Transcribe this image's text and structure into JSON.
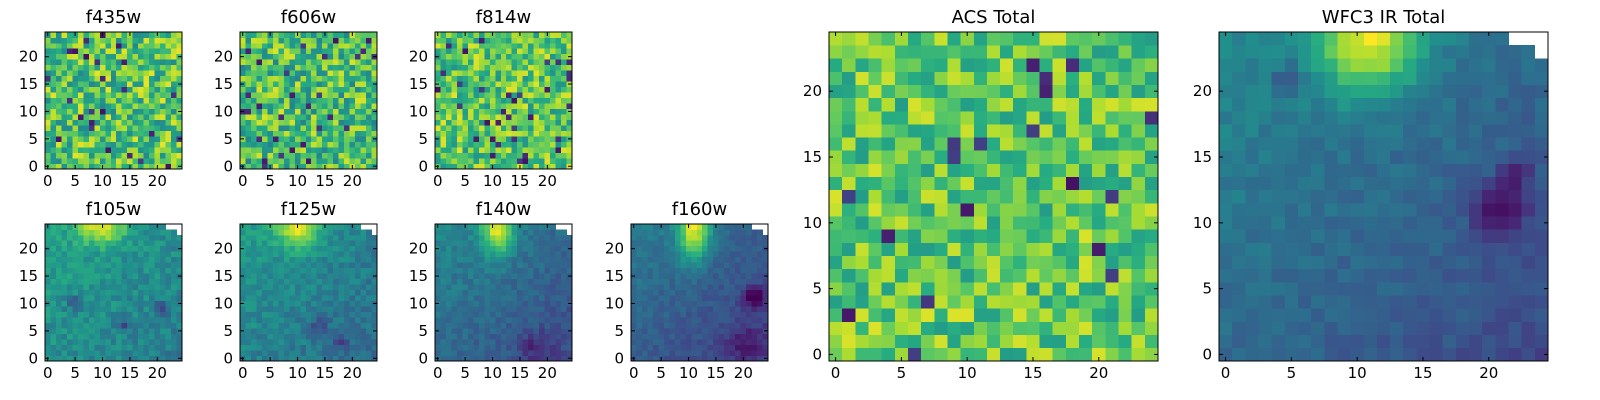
{
  "chart_data": [
    {
      "type": "heatmap",
      "title": "f435w",
      "grid_size": 25,
      "colormap": "viridis",
      "xticks": [
        "0",
        "5",
        "10",
        "15",
        "20"
      ],
      "yticks": [
        "0",
        "5",
        "10",
        "15",
        "20"
      ],
      "xlim": [
        -0.5,
        24.5
      ],
      "ylim": [
        -0.5,
        24.5
      ]
    },
    {
      "type": "heatmap",
      "title": "f606w",
      "grid_size": 25,
      "colormap": "viridis",
      "xticks": [
        "0",
        "5",
        "10",
        "15",
        "20"
      ],
      "yticks": [
        "0",
        "5",
        "10",
        "15",
        "20"
      ],
      "xlim": [
        -0.5,
        24.5
      ],
      "ylim": [
        -0.5,
        24.5
      ]
    },
    {
      "type": "heatmap",
      "title": "f814w",
      "grid_size": 25,
      "colormap": "viridis",
      "xticks": [
        "0",
        "5",
        "10",
        "15",
        "20"
      ],
      "yticks": [
        "0",
        "5",
        "10",
        "15",
        "20"
      ],
      "xlim": [
        -0.5,
        24.5
      ],
      "ylim": [
        -0.5,
        24.5
      ]
    },
    {
      "type": "heatmap",
      "title": "f105w",
      "grid_size": 25,
      "colormap": "viridis",
      "xticks": [
        "0",
        "5",
        "10",
        "15",
        "20"
      ],
      "yticks": [
        "0",
        "5",
        "10",
        "15",
        "20"
      ],
      "xlim": [
        -0.5,
        24.5
      ],
      "ylim": [
        -0.5,
        24.5
      ],
      "masked_corner": "top-right"
    },
    {
      "type": "heatmap",
      "title": "f125w",
      "grid_size": 25,
      "colormap": "viridis",
      "xticks": [
        "0",
        "5",
        "10",
        "15",
        "20"
      ],
      "yticks": [
        "0",
        "5",
        "10",
        "15",
        "20"
      ],
      "xlim": [
        -0.5,
        24.5
      ],
      "ylim": [
        -0.5,
        24.5
      ],
      "masked_corner": "top-right"
    },
    {
      "type": "heatmap",
      "title": "f140w",
      "grid_size": 25,
      "colormap": "viridis",
      "xticks": [
        "0",
        "5",
        "10",
        "15",
        "20"
      ],
      "yticks": [
        "0",
        "5",
        "10",
        "15",
        "20"
      ],
      "xlim": [
        -0.5,
        24.5
      ],
      "ylim": [
        -0.5,
        24.5
      ],
      "masked_corner": "top-right"
    },
    {
      "type": "heatmap",
      "title": "f160w",
      "grid_size": 25,
      "colormap": "viridis",
      "xticks": [
        "0",
        "5",
        "10",
        "15",
        "20"
      ],
      "yticks": [
        "0",
        "5",
        "10",
        "15",
        "20"
      ],
      "xlim": [
        -0.5,
        24.5
      ],
      "ylim": [
        -0.5,
        24.5
      ],
      "masked_corner": "top-right"
    },
    {
      "type": "heatmap",
      "title": "ACS Total",
      "grid_size": 25,
      "colormap": "viridis",
      "xticks": [
        "0",
        "5",
        "10",
        "15",
        "20"
      ],
      "yticks": [
        "0",
        "5",
        "10",
        "15",
        "20"
      ],
      "xlim": [
        -0.5,
        24.5
      ],
      "ylim": [
        -0.5,
        24.5
      ]
    },
    {
      "type": "heatmap",
      "title": "WFC3 IR Total",
      "grid_size": 25,
      "colormap": "viridis",
      "xticks": [
        "0",
        "5",
        "10",
        "15",
        "20"
      ],
      "yticks": [
        "0",
        "5",
        "10",
        "15",
        "20"
      ],
      "xlim": [
        -0.5,
        24.5
      ],
      "ylim": [
        -0.5,
        24.5
      ],
      "masked_corner": "top-right"
    }
  ]
}
